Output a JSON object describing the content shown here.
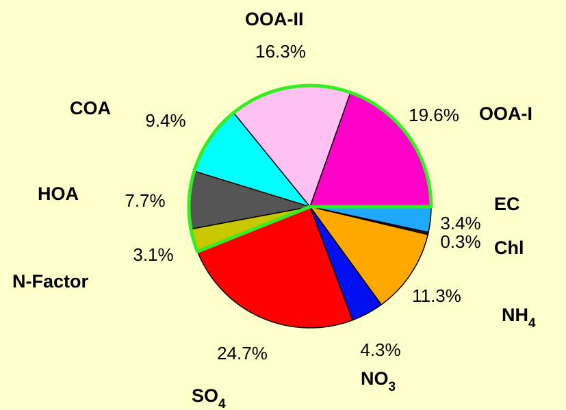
{
  "chart_data": {
    "type": "pie",
    "categories": [
      "EC",
      "Chl",
      "NH4",
      "NO3",
      "SO4",
      "N-Factor",
      "HOA",
      "COA",
      "OOA-II",
      "OOA-I"
    ],
    "values": [
      3.4,
      0.3,
      11.3,
      4.3,
      24.7,
      3.1,
      7.7,
      9.4,
      16.3,
      19.6
    ],
    "value_labels": [
      "3.4%",
      "0.3%",
      "11.3%",
      "4.3%",
      "24.7%",
      "3.1%",
      "7.7%",
      "9.4%",
      "16.3%",
      "19.6%"
    ],
    "colors": [
      "#1ea8ff",
      "#222222",
      "#ffa800",
      "#0010f0",
      "#ff0000",
      "#c8c800",
      "#555555",
      "#00ffff",
      "#ffc0f2",
      "#ff00c8"
    ],
    "outlined": [
      false,
      false,
      false,
      false,
      false,
      true,
      true,
      true,
      true,
      true
    ],
    "outline_color": "#33ee22"
  }
}
